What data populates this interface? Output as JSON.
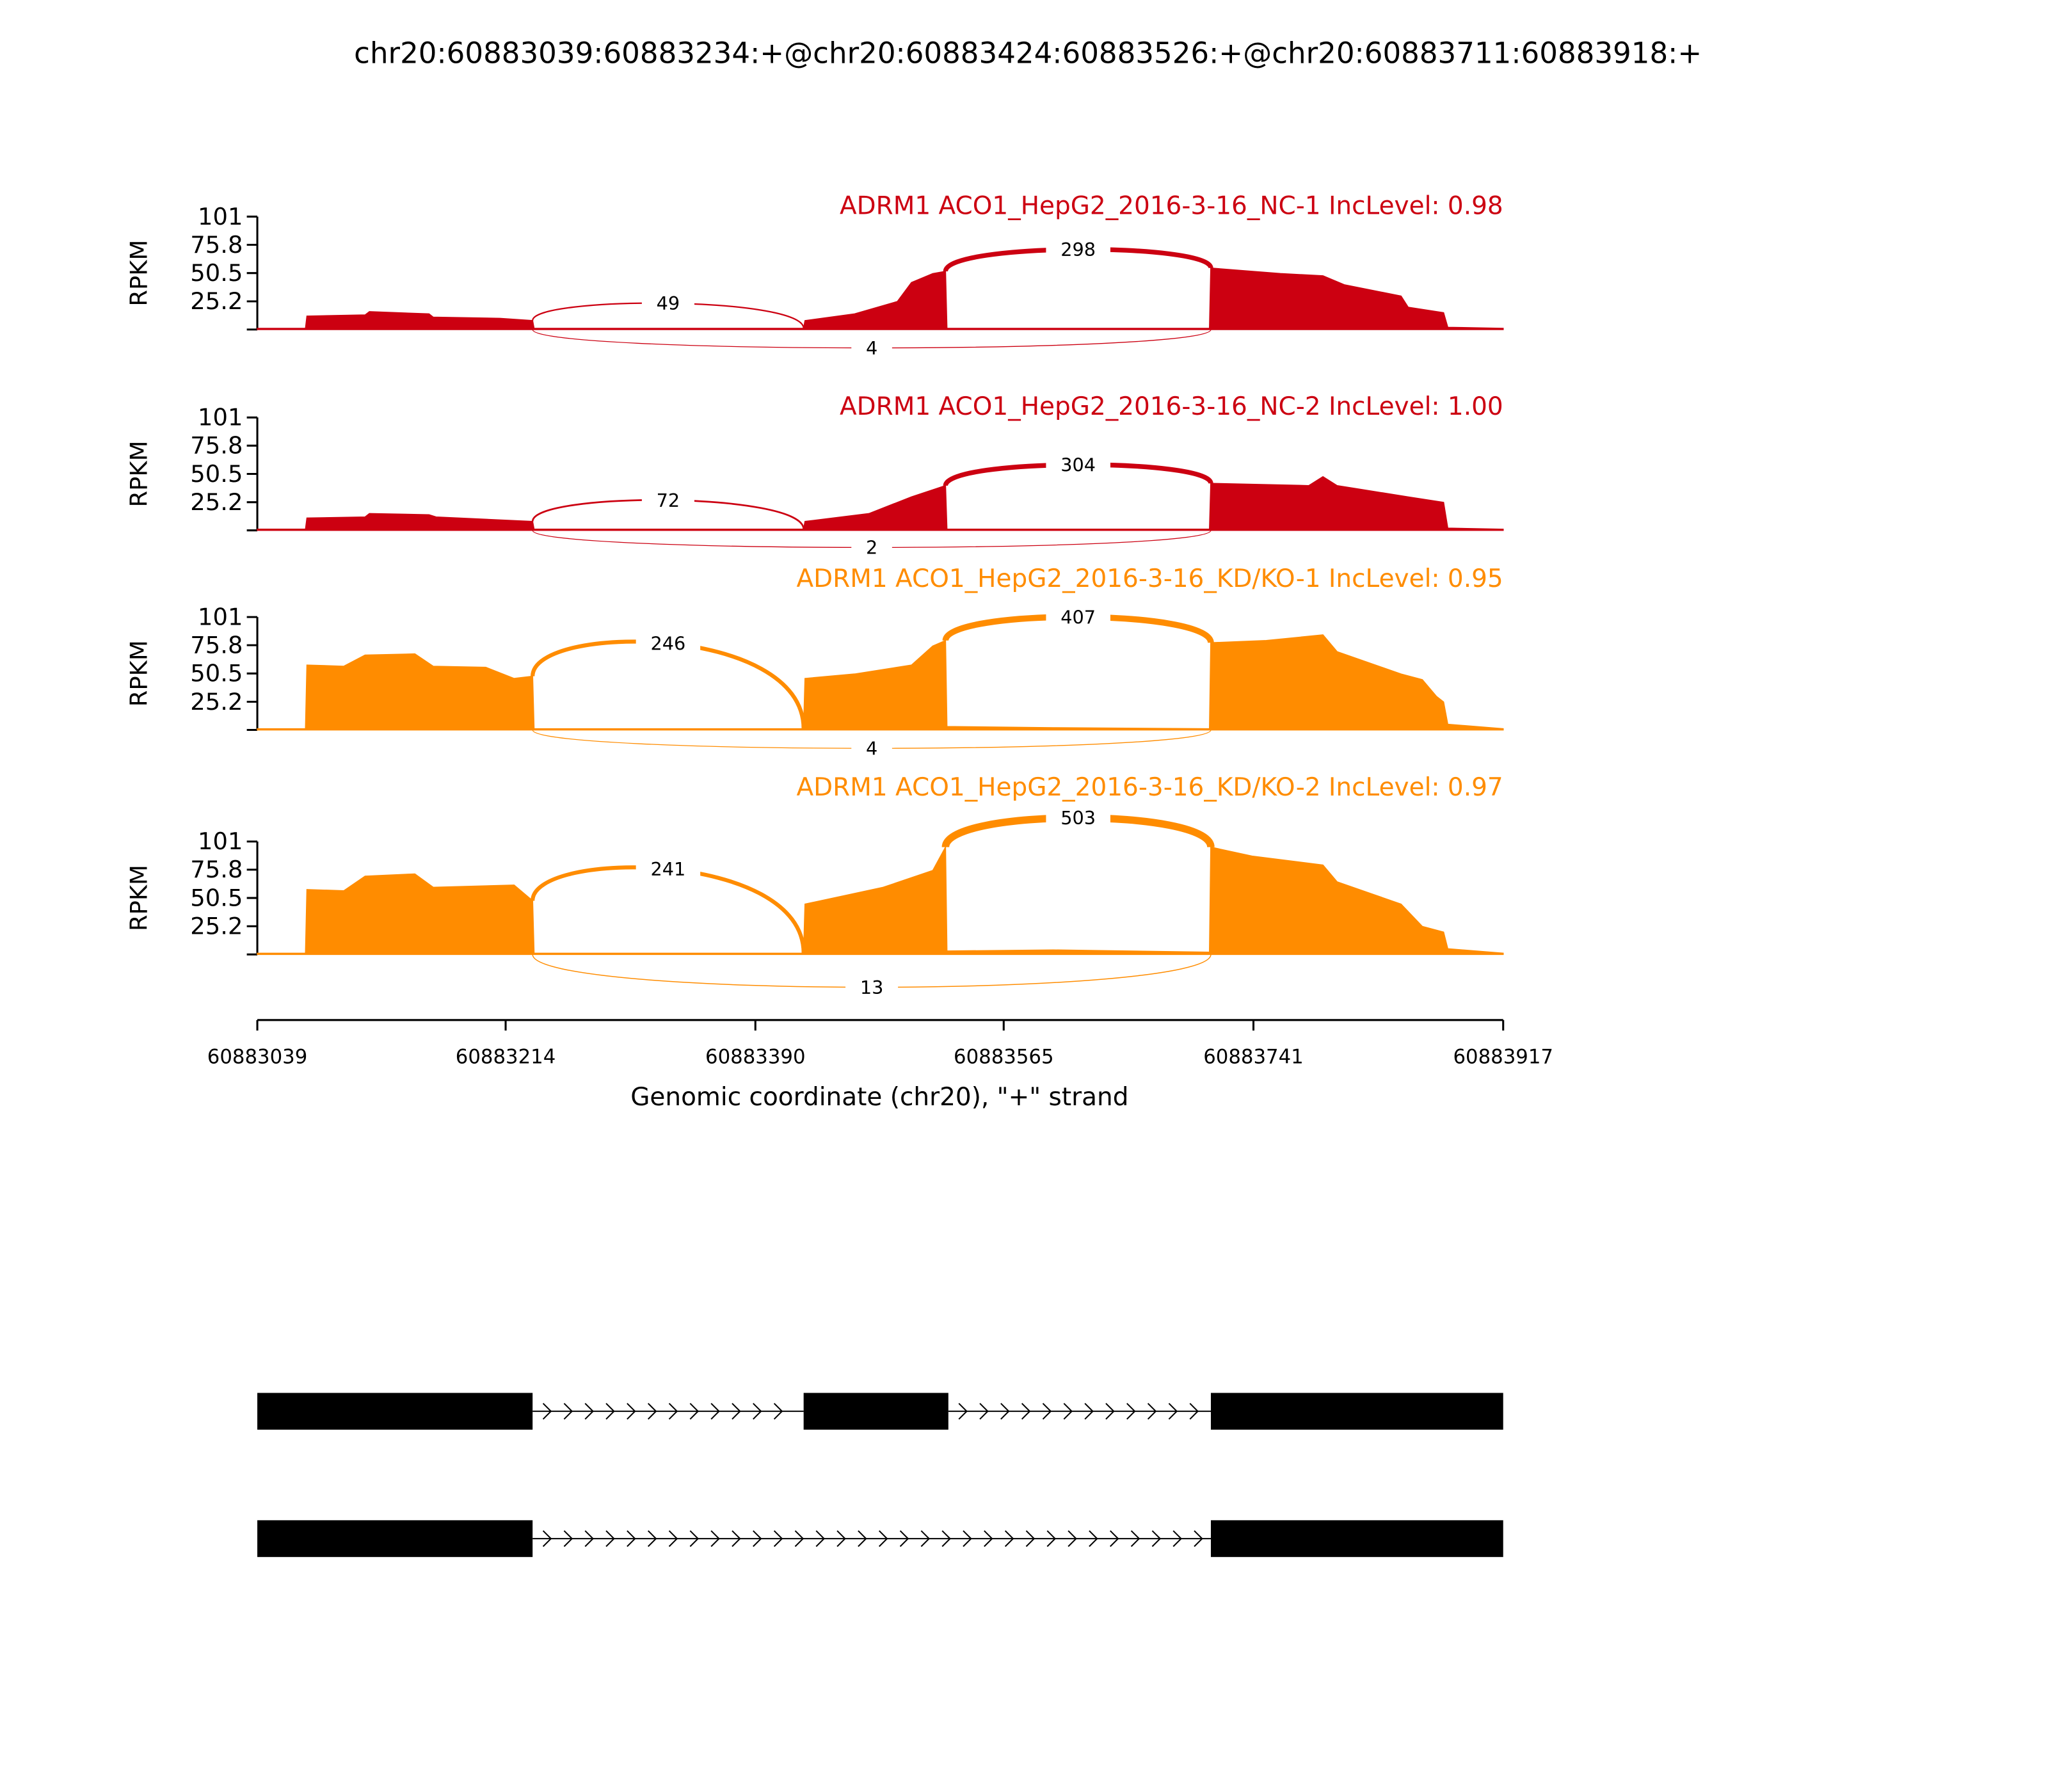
{
  "chart_data": {
    "type": "area",
    "title": "chr20:60883039:60883234:+@chr20:60883424:60883526:+@chr20:60883711:60883918:+",
    "xlabel": "Genomic coordinate (chr20), \"+\" strand",
    "ylabel": "RPKM",
    "xlim": [
      60883039,
      60883917
    ],
    "xticks": [
      "60883039",
      "60883214",
      "60883390",
      "60883565",
      "60883741",
      "60883917"
    ],
    "ylim": [
      0,
      101
    ],
    "yticks": [
      "101",
      "75.8",
      "50.5",
      "25.2"
    ],
    "colors": {
      "NC": "#CC0011",
      "KD": "#FF8C00"
    },
    "samples": [
      {
        "title": "ADRM1 ACO1_HepG2_2016-3-16_NC-1 IncLevel: 0.98",
        "group": "NC",
        "coverage": [
          [
            60883039,
            1
          ],
          [
            60883073,
            1
          ],
          [
            60883074,
            12
          ],
          [
            60883115,
            13
          ],
          [
            60883118,
            16
          ],
          [
            60883160,
            14
          ],
          [
            60883163,
            11
          ],
          [
            60883210,
            10
          ],
          [
            60883233,
            8
          ],
          [
            60883234,
            1
          ],
          [
            60883424,
            1
          ],
          [
            60883425,
            8
          ],
          [
            60883460,
            14
          ],
          [
            60883490,
            25
          ],
          [
            60883500,
            42
          ],
          [
            60883515,
            50
          ],
          [
            60883524,
            52
          ],
          [
            60883525,
            1
          ],
          [
            60883710,
            1
          ],
          [
            60883711,
            55
          ],
          [
            60883760,
            50
          ],
          [
            60883790,
            48
          ],
          [
            60883805,
            40
          ],
          [
            60883845,
            30
          ],
          [
            60883850,
            20
          ],
          [
            60883875,
            15
          ],
          [
            60883878,
            2
          ],
          [
            60883917,
            1
          ]
        ],
        "junctions": [
          {
            "from": 60883233,
            "to": 60883424,
            "count": "49",
            "side": "above"
          },
          {
            "from": 60883524,
            "to": 60883711,
            "count": "298",
            "side": "above"
          },
          {
            "from": 60883233,
            "to": 60883711,
            "count": "4",
            "side": "below"
          }
        ]
      },
      {
        "title": "ADRM1 ACO1_HepG2_2016-3-16_NC-2 IncLevel: 1.00",
        "group": "NC",
        "coverage": [
          [
            60883039,
            1
          ],
          [
            60883073,
            1
          ],
          [
            60883074,
            11
          ],
          [
            60883115,
            12
          ],
          [
            60883118,
            15
          ],
          [
            60883160,
            14
          ],
          [
            60883165,
            12
          ],
          [
            60883233,
            8
          ],
          [
            60883234,
            1
          ],
          [
            60883424,
            1
          ],
          [
            60883425,
            8
          ],
          [
            60883470,
            15
          ],
          [
            60883500,
            30
          ],
          [
            60883524,
            40
          ],
          [
            60883525,
            1
          ],
          [
            60883710,
            1
          ],
          [
            60883711,
            42
          ],
          [
            60883780,
            40
          ],
          [
            60883790,
            48
          ],
          [
            60883800,
            40
          ],
          [
            60883850,
            30
          ],
          [
            60883875,
            25
          ],
          [
            60883878,
            2
          ],
          [
            60883917,
            1
          ]
        ],
        "junctions": [
          {
            "from": 60883233,
            "to": 60883424,
            "count": "72",
            "side": "above"
          },
          {
            "from": 60883524,
            "to": 60883711,
            "count": "304",
            "side": "above"
          },
          {
            "from": 60883233,
            "to": 60883711,
            "count": "2",
            "side": "below"
          }
        ]
      },
      {
        "title": "ADRM1 ACO1_HepG2_2016-3-16_KD/KO-1 IncLevel: 0.95",
        "group": "KD",
        "coverage": [
          [
            60883039,
            1
          ],
          [
            60883073,
            1
          ],
          [
            60883074,
            58
          ],
          [
            60883100,
            57
          ],
          [
            60883115,
            67
          ],
          [
            60883150,
            68
          ],
          [
            60883163,
            57
          ],
          [
            60883200,
            56
          ],
          [
            60883220,
            46
          ],
          [
            60883233,
            48
          ],
          [
            60883234,
            1
          ],
          [
            60883424,
            1
          ],
          [
            60883425,
            46
          ],
          [
            60883460,
            50
          ],
          [
            60883500,
            58
          ],
          [
            60883515,
            75
          ],
          [
            60883524,
            80
          ],
          [
            60883525,
            3
          ],
          [
            60883600,
            2
          ],
          [
            60883710,
            1
          ],
          [
            60883711,
            78
          ],
          [
            60883750,
            80
          ],
          [
            60883790,
            85
          ],
          [
            60883800,
            70
          ],
          [
            60883845,
            50
          ],
          [
            60883860,
            45
          ],
          [
            60883870,
            30
          ],
          [
            60883875,
            25
          ],
          [
            60883878,
            5
          ],
          [
            60883917,
            1
          ]
        ],
        "junctions": [
          {
            "from": 60883233,
            "to": 60883424,
            "count": "246",
            "side": "above"
          },
          {
            "from": 60883524,
            "to": 60883711,
            "count": "407",
            "side": "above"
          },
          {
            "from": 60883233,
            "to": 60883711,
            "count": "4",
            "side": "below"
          }
        ]
      },
      {
        "title": "ADRM1 ACO1_HepG2_2016-3-16_KD/KO-2 IncLevel: 0.97",
        "group": "KD",
        "coverage": [
          [
            60883039,
            1
          ],
          [
            60883073,
            1
          ],
          [
            60883074,
            58
          ],
          [
            60883100,
            57
          ],
          [
            60883115,
            70
          ],
          [
            60883150,
            72
          ],
          [
            60883163,
            60
          ],
          [
            60883220,
            62
          ],
          [
            60883233,
            48
          ],
          [
            60883234,
            1
          ],
          [
            60883424,
            1
          ],
          [
            60883425,
            45
          ],
          [
            60883480,
            60
          ],
          [
            60883515,
            75
          ],
          [
            60883524,
            96
          ],
          [
            60883525,
            3
          ],
          [
            60883600,
            4
          ],
          [
            60883710,
            2
          ],
          [
            60883711,
            96
          ],
          [
            60883740,
            88
          ],
          [
            60883790,
            80
          ],
          [
            60883800,
            65
          ],
          [
            60883845,
            45
          ],
          [
            60883860,
            25
          ],
          [
            60883875,
            20
          ],
          [
            60883878,
            5
          ],
          [
            60883917,
            1
          ]
        ],
        "junctions": [
          {
            "from": 60883233,
            "to": 60883424,
            "count": "241",
            "side": "above"
          },
          {
            "from": 60883524,
            "to": 60883711,
            "count": "503",
            "side": "above"
          },
          {
            "from": 60883233,
            "to": 60883711,
            "count": "13",
            "side": "below"
          }
        ]
      }
    ],
    "isoforms": [
      {
        "exons": [
          [
            60883039,
            60883233
          ],
          [
            60883424,
            60883526
          ],
          [
            60883711,
            60883917
          ]
        ]
      },
      {
        "exons": [
          [
            60883039,
            60883233
          ],
          [
            60883711,
            60883917
          ]
        ]
      }
    ]
  }
}
